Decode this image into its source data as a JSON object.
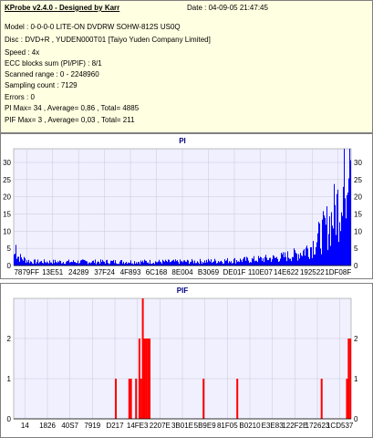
{
  "header": {
    "title": "KProbe v2.4.0 - Designed by Karr",
    "date": "Date : 04-09-05 21:47:45",
    "model": "Model : 0-0-0-0 LITE-ON DVDRW SOHW-812S  US0Q",
    "disc": "Disc : DVD+R , YUDEN000T01 [Taiyo Yuden Company Limited]",
    "speed": "Speed : 4x",
    "ecc": "ECC blocks sum (PI/PIF) : 8/1",
    "scanned": "Scanned range : 0 - 2248960",
    "sampling": "Sampling count : 7129",
    "errors": "Errors : 0",
    "pi_stats": "PI Max= 34 , Average= 0,86 , Total= 4885",
    "pif_stats": "PIF Max= 3 , Average= 0,03 , Total= 211"
  },
  "colors": {
    "bars": "#ff0000",
    "pi_bars": "#0000ff",
    "plot_bg": "#f0f0ff",
    "title": "#000080"
  },
  "chart_data": [
    {
      "type": "bar",
      "title": "PI",
      "ylim": [
        0,
        34
      ],
      "y_ticks": [
        "0",
        "5",
        "10",
        "15",
        "20",
        "25",
        "30"
      ],
      "x_tick_labels": [
        "7879FF",
        "13E51",
        "24289",
        "37F24",
        "4F893",
        "6C168",
        "8E004",
        "B3069",
        "DE01F",
        "110E07",
        "14E622",
        "192522",
        "1DF08F"
      ],
      "grid": true,
      "profile": [
        {
          "x": 0.0,
          "y": 3
        },
        {
          "x": 0.02,
          "y": 2
        },
        {
          "x": 0.05,
          "y": 1
        },
        {
          "x": 0.1,
          "y": 1
        },
        {
          "x": 0.2,
          "y": 1
        },
        {
          "x": 0.3,
          "y": 1
        },
        {
          "x": 0.4,
          "y": 1
        },
        {
          "x": 0.5,
          "y": 1
        },
        {
          "x": 0.6,
          "y": 1.2
        },
        {
          "x": 0.7,
          "y": 1.5
        },
        {
          "x": 0.78,
          "y": 2
        },
        {
          "x": 0.84,
          "y": 3
        },
        {
          "x": 0.88,
          "y": 5
        },
        {
          "x": 0.91,
          "y": 8
        },
        {
          "x": 0.94,
          "y": 12
        },
        {
          "x": 0.97,
          "y": 18
        },
        {
          "x": 0.99,
          "y": 25
        },
        {
          "x": 1.0,
          "y": 30
        }
      ],
      "max": 34
    },
    {
      "type": "bar",
      "title": "PIF",
      "ylim": [
        0,
        3
      ],
      "y_ticks": [
        "0",
        "1",
        "2"
      ],
      "x_tick_labels": [
        "14",
        "1826",
        "40S7",
        "7919",
        "D217",
        "14FE3",
        "2207E",
        "3B01E",
        "5B9E9",
        "81F05",
        "B0210",
        "E3E83",
        "122F2E",
        "172623",
        "1CD537"
      ],
      "grid": true,
      "spikes": [
        {
          "x": 0.3,
          "y": 1
        },
        {
          "x": 0.34,
          "y": 1
        },
        {
          "x": 0.345,
          "y": 1
        },
        {
          "x": 0.36,
          "y": 1
        },
        {
          "x": 0.37,
          "y": 2
        },
        {
          "x": 0.375,
          "y": 1
        },
        {
          "x": 0.38,
          "y": 3
        },
        {
          "x": 0.385,
          "y": 2
        },
        {
          "x": 0.39,
          "y": 2
        },
        {
          "x": 0.395,
          "y": 2
        },
        {
          "x": 0.4,
          "y": 2
        },
        {
          "x": 0.56,
          "y": 1
        },
        {
          "x": 0.66,
          "y": 1
        },
        {
          "x": 0.91,
          "y": 1
        },
        {
          "x": 0.985,
          "y": 1
        },
        {
          "x": 0.99,
          "y": 2
        },
        {
          "x": 0.995,
          "y": 2
        }
      ]
    }
  ]
}
